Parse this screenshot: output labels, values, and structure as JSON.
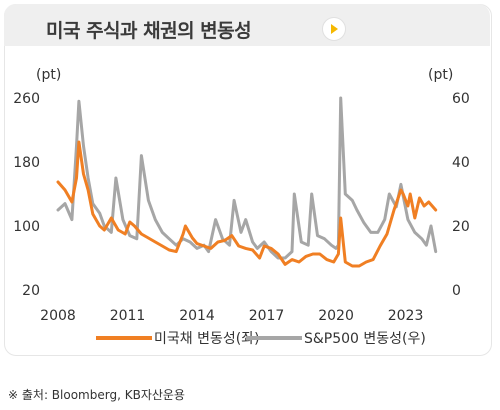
{
  "header": {
    "title": "미국 주식과 채권의 변동성"
  },
  "colors": {
    "series1": "#f07f23",
    "series2": "#a6a6a6",
    "header_bg": "#efefef",
    "play": "#f5b800"
  },
  "icons": {
    "play": "play-icon"
  },
  "source": "※ 출처: Bloomberg, KB자산운용",
  "chart_data": {
    "type": "line",
    "x_ticks": [
      "2008",
      "2011",
      "2014",
      "2017",
      "2020",
      "2023"
    ],
    "xlim": [
      2008,
      2024.4
    ],
    "left_axis": {
      "unit": "(pt)",
      "ticks": [
        "260",
        "180",
        "100",
        "20"
      ],
      "ylim": [
        20,
        260
      ]
    },
    "right_axis": {
      "unit": "(pt)",
      "ticks": [
        "60",
        "40",
        "20",
        "0"
      ],
      "ylim": [
        0,
        60
      ]
    },
    "grid": false,
    "legend_position": "bottom",
    "series": [
      {
        "name": "미국채 변동성(좌)",
        "axis": "left",
        "color": "#f07f23",
        "x": [
          2008.0,
          2008.3,
          2008.6,
          2008.8,
          2008.9,
          2009.1,
          2009.3,
          2009.5,
          2009.8,
          2010.0,
          2010.3,
          2010.6,
          2010.9,
          2011.1,
          2011.3,
          2011.6,
          2011.9,
          2012.2,
          2012.5,
          2012.8,
          2013.1,
          2013.4,
          2013.5,
          2013.8,
          2014.0,
          2014.3,
          2014.6,
          2014.9,
          2015.2,
          2015.5,
          2015.8,
          2016.1,
          2016.4,
          2016.7,
          2016.9,
          2017.2,
          2017.5,
          2017.8,
          2018.1,
          2018.4,
          2018.7,
          2019.0,
          2019.3,
          2019.6,
          2019.9,
          2020.1,
          2020.2,
          2020.4,
          2020.7,
          2021.0,
          2021.3,
          2021.6,
          2021.9,
          2022.2,
          2022.5,
          2022.8,
          2022.9,
          2023.1,
          2023.2,
          2023.4,
          2023.6,
          2023.8,
          2024.0,
          2024.3
        ],
        "values": [
          155,
          145,
          130,
          160,
          205,
          165,
          145,
          115,
          100,
          95,
          110,
          95,
          90,
          105,
          100,
          90,
          85,
          80,
          75,
          70,
          68,
          90,
          100,
          85,
          78,
          75,
          72,
          80,
          82,
          88,
          75,
          72,
          70,
          60,
          75,
          72,
          65,
          52,
          58,
          55,
          62,
          65,
          65,
          58,
          55,
          65,
          110,
          55,
          50,
          50,
          55,
          58,
          75,
          90,
          120,
          145,
          140,
          125,
          140,
          110,
          135,
          125,
          130,
          120
        ]
      },
      {
        "name": "S&P500 변동성(우)",
        "axis": "right",
        "color": "#a6a6a6",
        "x": [
          2008.0,
          2008.3,
          2008.6,
          2008.8,
          2008.9,
          2009.1,
          2009.3,
          2009.5,
          2009.8,
          2010.0,
          2010.3,
          2010.5,
          2010.8,
          2011.1,
          2011.4,
          2011.6,
          2011.9,
          2012.2,
          2012.5,
          2012.8,
          2013.1,
          2013.4,
          2013.7,
          2014.0,
          2014.3,
          2014.5,
          2014.8,
          2015.1,
          2015.4,
          2015.6,
          2015.9,
          2016.1,
          2016.4,
          2016.6,
          2016.9,
          2017.2,
          2017.5,
          2017.8,
          2018.1,
          2018.2,
          2018.5,
          2018.8,
          2018.95,
          2019.2,
          2019.5,
          2019.8,
          2020.0,
          2020.1,
          2020.2,
          2020.4,
          2020.7,
          2020.9,
          2021.2,
          2021.5,
          2021.8,
          2022.1,
          2022.3,
          2022.6,
          2022.8,
          2023.1,
          2023.4,
          2023.7,
          2023.9,
          2024.1,
          2024.3
        ],
        "values": [
          25,
          27,
          22,
          45,
          59,
          45,
          35,
          27,
          24,
          20,
          18,
          35,
          22,
          17,
          16,
          42,
          28,
          22,
          18,
          16,
          14,
          16,
          15,
          13,
          14,
          12,
          22,
          16,
          14,
          28,
          18,
          22,
          15,
          13,
          15,
          12,
          10,
          10,
          12,
          30,
          15,
          14,
          30,
          17,
          16,
          14,
          13,
          14,
          60,
          30,
          28,
          25,
          21,
          18,
          18,
          22,
          30,
          26,
          33,
          22,
          18,
          16,
          14,
          20,
          12
        ]
      }
    ]
  }
}
